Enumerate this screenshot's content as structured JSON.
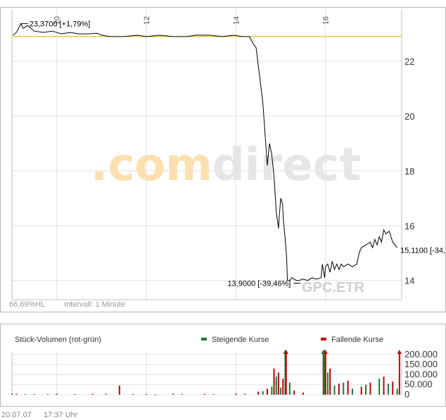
{
  "chart_data": [
    {
      "type": "line",
      "title": "",
      "xlabel": "",
      "ylabel": "",
      "x_ticks": [
        10,
        12,
        14,
        16
      ],
      "y_ticks": [
        14,
        16,
        18,
        20,
        22
      ],
      "xlim": [
        9.0,
        17.7
      ],
      "ylim": [
        13.3,
        23.9
      ],
      "grid": true,
      "reference_line": {
        "value": 22.9,
        "color": "#d6c200"
      },
      "annotations": {
        "high": "23,3700 [+1,79%]",
        "low": "13,9000 [-39,46%]",
        "last": "15,1100 [-34,"
      },
      "series": [
        {
          "color": "#000000",
          "x": [
            9.02,
            9.1,
            9.2,
            9.25,
            9.35,
            9.5,
            9.7,
            9.9,
            10.1,
            10.3,
            10.5,
            10.7,
            10.9,
            11.0,
            11.2,
            11.5,
            11.8,
            12.0,
            12.3,
            12.6,
            12.9,
            13.1,
            13.4,
            13.7,
            13.95,
            14.15,
            14.3,
            14.4,
            14.45,
            14.6,
            14.7,
            14.75,
            14.8,
            14.85,
            14.9,
            14.95,
            14.97,
            15.0,
            15.04,
            15.06,
            15.1,
            15.13,
            15.15,
            15.2,
            15.25,
            15.3,
            15.35,
            15.4,
            15.5,
            15.6,
            15.7,
            15.8,
            15.9,
            15.93,
            15.98,
            16.0,
            16.05,
            16.1,
            16.15,
            16.2,
            16.25,
            16.3,
            16.35,
            16.4,
            16.5,
            16.6,
            16.7,
            16.75,
            16.8,
            16.9,
            17.0,
            17.05,
            17.1,
            17.15,
            17.2,
            17.25,
            17.3,
            17.35,
            17.42,
            17.5,
            17.6
          ],
          "y": [
            22.95,
            23.05,
            23.37,
            23.2,
            23.3,
            23.1,
            23.05,
            23.1,
            23.0,
            23.05,
            23.0,
            23.0,
            23.02,
            22.95,
            22.9,
            22.9,
            22.95,
            22.9,
            22.95,
            22.9,
            22.9,
            22.95,
            22.95,
            22.9,
            22.95,
            22.9,
            22.9,
            22.6,
            22.5,
            20.5,
            18.2,
            19.0,
            18.6,
            17.8,
            16.5,
            15.9,
            16.4,
            17.0,
            16.8,
            16.2,
            15.5,
            14.9,
            14.0,
            14.0,
            14.1,
            14.05,
            14.0,
            14.0,
            14.05,
            14.0,
            14.1,
            14.05,
            14.1,
            14.6,
            14.1,
            14.5,
            14.6,
            14.3,
            14.7,
            14.4,
            14.6,
            14.4,
            14.6,
            14.5,
            14.6,
            14.5,
            14.6,
            15.0,
            15.2,
            15.3,
            15.4,
            15.2,
            15.5,
            15.3,
            15.6,
            15.4,
            15.85,
            15.7,
            15.8,
            15.4,
            15.2
          ]
        }
      ]
    },
    {
      "type": "bar",
      "title": "Stück-Volumen (rot-grün)",
      "y_ticks": [
        0,
        50000,
        100000,
        150000,
        200000
      ],
      "y_tick_labels": [
        "0",
        "50.000",
        "100.000",
        "150.000",
        "200.000"
      ],
      "ylim": [
        0,
        210000
      ],
      "grid": true,
      "series": [
        {
          "name": "Steigende Kurse",
          "color": "#1a7a3a",
          "x": [
            9.0,
            9.3,
            9.8,
            10.4,
            11.1,
            11.7,
            12.2,
            12.8,
            13.5,
            14.2,
            14.6,
            14.8,
            14.9,
            15.0,
            15.1,
            15.2,
            15.95,
            15.98,
            16.05,
            16.2,
            16.4,
            16.6,
            16.9,
            17.2,
            17.4,
            17.6
          ],
          "values": [
            6000,
            3000,
            4000,
            3000,
            5000,
            3000,
            2000,
            4000,
            3000,
            5000,
            18000,
            40000,
            90000,
            35000,
            210000,
            60000,
            210000,
            210000,
            110000,
            45000,
            60000,
            30000,
            50000,
            80000,
            55000,
            30000
          ]
        },
        {
          "name": "Fallende Kurse",
          "color": "#c00000",
          "x": [
            9.1,
            9.5,
            10.0,
            10.8,
            11.4,
            12.0,
            12.6,
            13.3,
            14.0,
            14.5,
            14.7,
            14.85,
            14.95,
            15.05,
            15.12,
            15.3,
            15.5,
            16.0,
            16.1,
            16.3,
            16.5,
            16.8,
            17.0,
            17.3,
            17.5,
            17.65
          ],
          "values": [
            4000,
            3000,
            5000,
            4000,
            45000,
            3000,
            5000,
            4000,
            6000,
            15000,
            30000,
            130000,
            110000,
            80000,
            210000,
            20000,
            10000,
            210000,
            130000,
            55000,
            70000,
            40000,
            60000,
            90000,
            65000,
            210000
          ]
        }
      ]
    }
  ],
  "watermark": {
    "prefix": ".com",
    "suffix": "direct"
  },
  "chart_footer": {
    "range": "66,69%HL",
    "interval": "Intervall: 1 Minute",
    "symbol": "GPC.ETR"
  },
  "footer": {
    "date": "20.07.07",
    "time": "17:37 Uhr"
  },
  "colors": {
    "grid": "#e0e0e0",
    "axis": "#c0c0c0",
    "ref_line": "#d6c200",
    "price": "#000000",
    "watermark_orange": "#fde0b0",
    "watermark_gray": "#e6e6e6"
  }
}
